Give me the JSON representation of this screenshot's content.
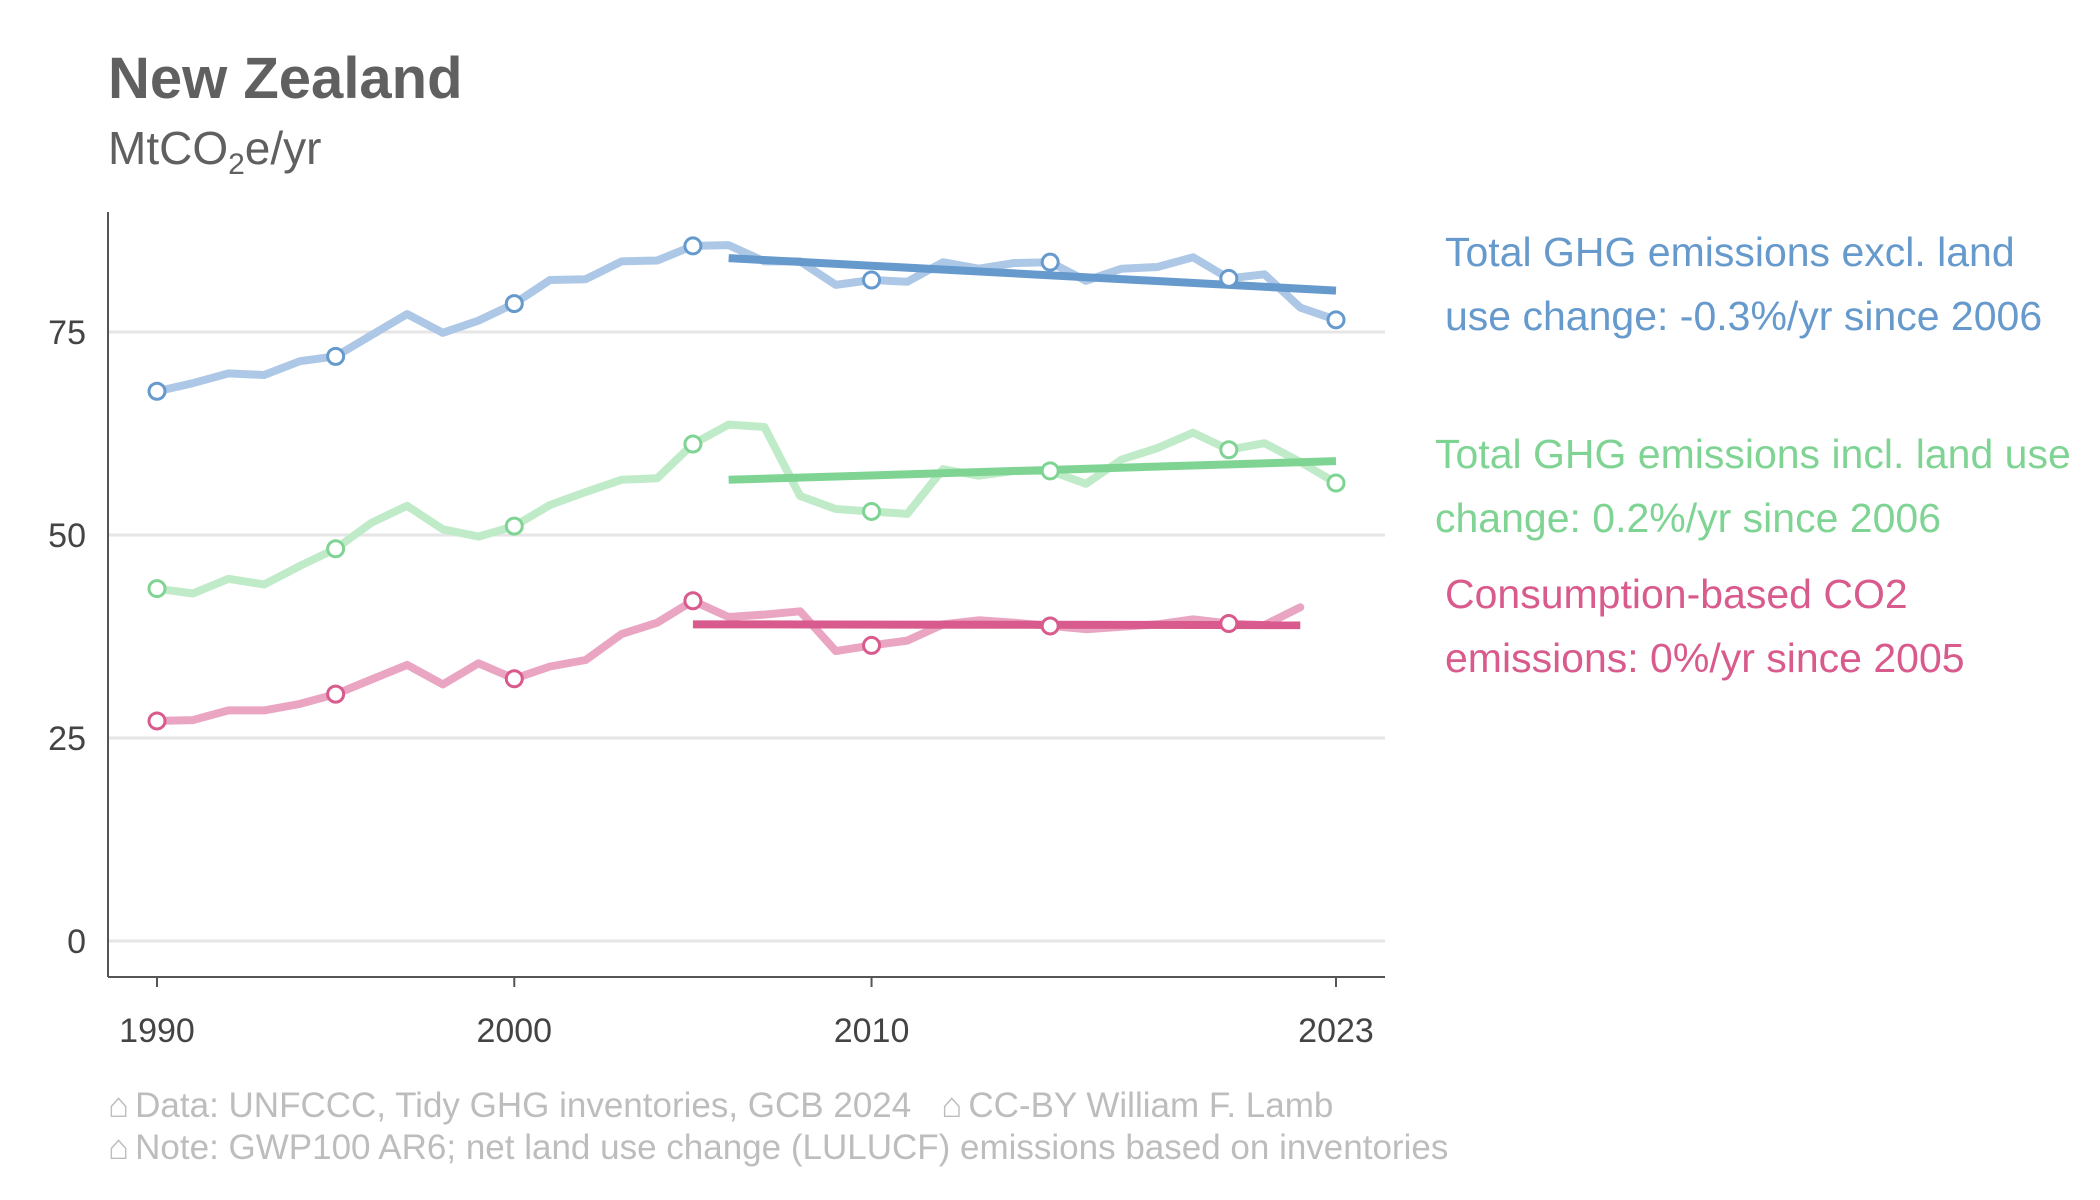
{
  "title": "New Zealand",
  "subtitle": {
    "main": "MtCO",
    "sub": "2",
    "rest": "e/yr"
  },
  "captions": {
    "glyph": "⌂",
    "data_source": "Data: UNFCCC, Tidy GHG inventories, GCB 2024",
    "license": "CC-BY William F. Lamb",
    "note": "Note: GWP100 AR6; net land use change (LULUCF) emissions based on inventories"
  },
  "chart_data": {
    "type": "line",
    "title": "New Zealand",
    "ylabel": "MtCO2e/yr",
    "xlim": [
      1990,
      2023
    ],
    "ylim": [
      0,
      90
    ],
    "x_ticks": [
      1990,
      2000,
      2010,
      2023
    ],
    "y_ticks": [
      0,
      25,
      50,
      75
    ],
    "grid": "horizontal",
    "series": [
      {
        "name": "Total GHG emissions excl. land use change: -0.3%/yr since 2006",
        "color": "#6699cc",
        "light_color": "#adc8e6",
        "x": [
          1990,
          1991,
          1992,
          1993,
          1994,
          1995,
          1996,
          1997,
          1998,
          1999,
          2000,
          2001,
          2002,
          2003,
          2004,
          2005,
          2006,
          2007,
          2008,
          2009,
          2010,
          2011,
          2012,
          2013,
          2014,
          2015,
          2016,
          2017,
          2018,
          2019,
          2020,
          2021,
          2022,
          2023
        ],
        "values": [
          67.7,
          68.7,
          69.9,
          69.7,
          71.4,
          72.0,
          74.6,
          77.2,
          74.9,
          76.4,
          78.5,
          81.4,
          81.5,
          83.7,
          83.8,
          85.6,
          85.7,
          83.7,
          83.7,
          80.8,
          81.4,
          81.2,
          83.6,
          82.8,
          83.5,
          83.6,
          81.3,
          82.8,
          83.0,
          84.2,
          81.6,
          82.1,
          78.0,
          76.5
        ],
        "markers_x": [
          1990,
          1995,
          2000,
          2005,
          2010,
          2015,
          2020,
          2023
        ],
        "trend": {
          "x": [
            2006,
            2023
          ],
          "y": [
            84.1,
            80.1
          ]
        }
      },
      {
        "name": "Total GHG emissions incl. land use change: 0.2%/yr since 2006",
        "color": "#7fd494",
        "light_color": "#c0ebc9",
        "x": [
          1990,
          1991,
          1992,
          1993,
          1994,
          1995,
          1996,
          1997,
          1998,
          1999,
          2000,
          2001,
          2002,
          2003,
          2004,
          2005,
          2006,
          2007,
          2008,
          2009,
          2010,
          2011,
          2012,
          2013,
          2014,
          2015,
          2016,
          2017,
          2018,
          2019,
          2020,
          2021,
          2022,
          2023
        ],
        "values": [
          43.4,
          42.8,
          44.6,
          43.9,
          46.2,
          48.3,
          51.5,
          53.6,
          50.7,
          49.8,
          51.1,
          53.7,
          55.3,
          56.8,
          57.0,
          61.2,
          63.6,
          63.3,
          54.8,
          53.2,
          52.9,
          52.6,
          58.1,
          57.3,
          57.9,
          57.9,
          56.3,
          59.3,
          60.7,
          62.6,
          60.5,
          61.3,
          59.0,
          56.4
        ],
        "markers_x": [
          1990,
          1995,
          2000,
          2005,
          2010,
          2015,
          2020,
          2023
        ],
        "trend": {
          "x": [
            2006,
            2023
          ],
          "y": [
            56.8,
            59.1
          ]
        }
      },
      {
        "name": "Consumption-based CO2 emissions: 0%/yr since 2005",
        "color": "#d95a8c",
        "light_color": "#eaa5c2",
        "x": [
          1990,
          1991,
          1992,
          1993,
          1994,
          1995,
          1996,
          1997,
          1998,
          1999,
          2000,
          2001,
          2002,
          2003,
          2004,
          2005,
          2006,
          2007,
          2008,
          2009,
          2010,
          2011,
          2012,
          2013,
          2014,
          2015,
          2016,
          2017,
          2018,
          2019,
          2020,
          2021,
          2022
        ],
        "values": [
          27.1,
          27.2,
          28.4,
          28.4,
          29.2,
          30.4,
          32.2,
          34.0,
          31.6,
          34.2,
          32.3,
          33.8,
          34.6,
          37.8,
          39.2,
          41.9,
          39.9,
          40.2,
          40.6,
          35.7,
          36.4,
          37.0,
          39.0,
          39.5,
          39.2,
          38.8,
          38.4,
          38.7,
          39.0,
          39.6,
          39.1,
          38.9,
          41.1
        ],
        "markers_x": [
          1990,
          1995,
          2000,
          2005,
          2010,
          2015,
          2020
        ],
        "trend": {
          "x": [
            2005,
            2022
          ],
          "y": [
            39.0,
            38.9
          ]
        }
      }
    ]
  }
}
